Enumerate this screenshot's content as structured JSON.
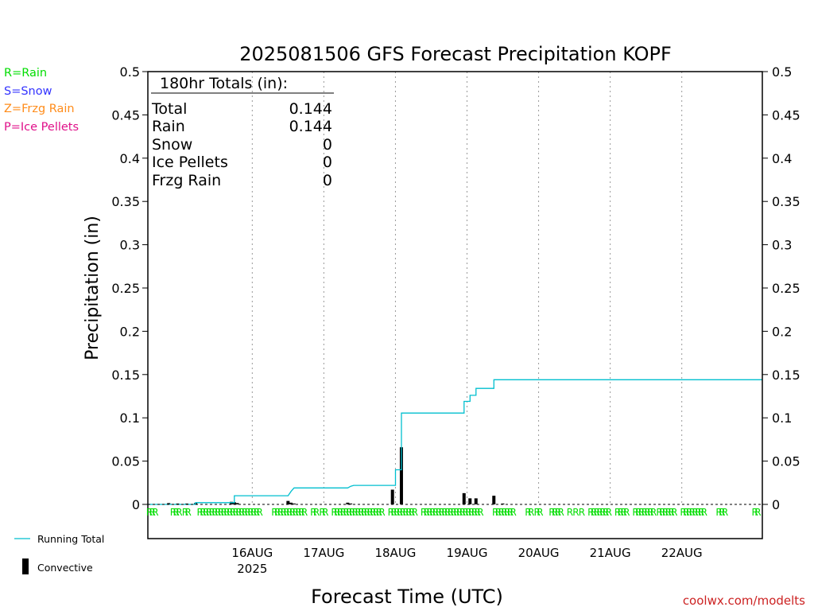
{
  "chart_data": {
    "type": "bar",
    "title": "2025081506 GFS Forecast Precipitation KOPF",
    "xlabel": "Forecast Time (UTC)",
    "ylabel": "Precipitation (in)",
    "ylim": [
      0,
      0.5
    ],
    "y_ticks": [
      "0",
      "0.05",
      "0.1",
      "0.15",
      "0.2",
      "0.25",
      "0.3",
      "0.35",
      "0.4",
      "0.45",
      "0.5"
    ],
    "xlim_hours": [
      -17,
      189
    ],
    "x_ticks": [
      {
        "label": "16AUG",
        "sublabel": "2025",
        "hour": 18
      },
      {
        "label": "17AUG",
        "sublabel": "",
        "hour": 42
      },
      {
        "label": "18AUG",
        "sublabel": "",
        "hour": 66
      },
      {
        "label": "19AUG",
        "sublabel": "",
        "hour": 90
      },
      {
        "label": "20AUG",
        "sublabel": "",
        "hour": 114
      },
      {
        "label": "21AUG",
        "sublabel": "",
        "hour": 138
      },
      {
        "label": "22AUG",
        "sublabel": "",
        "hour": 162
      }
    ],
    "grid": "vertical-dotted",
    "series": [
      {
        "name": "Running Total",
        "color": "#00bfcf",
        "step_points": [
          [
            -17,
            0
          ],
          [
            -1,
            0
          ],
          [
            -1,
            0.002
          ],
          [
            12,
            0.002
          ],
          [
            12,
            0.01
          ],
          [
            30,
            0.01
          ],
          [
            31,
            0.015
          ],
          [
            32,
            0.019
          ],
          [
            50,
            0.019
          ],
          [
            51,
            0.021
          ],
          [
            52,
            0.022
          ],
          [
            66,
            0.022
          ],
          [
            66,
            0.04
          ],
          [
            68,
            0.04
          ],
          [
            68,
            0.1055
          ],
          [
            89,
            0.1055
          ],
          [
            89,
            0.119
          ],
          [
            91,
            0.119
          ],
          [
            91,
            0.126
          ],
          [
            93,
            0.126
          ],
          [
            93,
            0.134
          ],
          [
            99,
            0.134
          ],
          [
            99,
            0.144
          ],
          [
            189,
            0.144
          ]
        ]
      },
      {
        "name": "Convective",
        "color": "#000000",
        "bars": [
          [
            -10,
            0.0015
          ],
          [
            -7,
            0.001
          ],
          [
            -4,
            0.001
          ],
          [
            -1,
            0.0015
          ],
          [
            11,
            0.003
          ],
          [
            12,
            0.0025
          ],
          [
            13,
            0.0015
          ],
          [
            30,
            0.004
          ],
          [
            31,
            0.002
          ],
          [
            32,
            0.001
          ],
          [
            50,
            0.002
          ],
          [
            51,
            0.001
          ],
          [
            65,
            0.017
          ],
          [
            68,
            0.066
          ],
          [
            89,
            0.013
          ],
          [
            91,
            0.007
          ],
          [
            93,
            0.007
          ],
          [
            99,
            0.01
          ],
          [
            102,
            0.001
          ]
        ]
      }
    ],
    "ptype_row": {
      "color": "#00dd00",
      "letter": "R",
      "hours": [
        -16.5,
        -15.5,
        -14.5,
        -8.5,
        -7.5,
        -6.5,
        -4.5,
        -3.5,
        0.5,
        1.5,
        2.5,
        3.5,
        4.5,
        5.5,
        6.5,
        7.5,
        8.5,
        9.5,
        10.5,
        11.5,
        12.5,
        13.5,
        14.5,
        15.5,
        16.5,
        17.5,
        18.5,
        19.5,
        20.5,
        25.5,
        26.5,
        27.5,
        28.5,
        29.5,
        30.5,
        31.5,
        32.5,
        33.5,
        34.5,
        35.5,
        38.5,
        39.5,
        41.5,
        42.5,
        45.5,
        46.5,
        47.5,
        48.5,
        49.5,
        50.5,
        51.5,
        52.5,
        53.5,
        54.5,
        55.5,
        56.5,
        57.5,
        58.5,
        59.5,
        60.5,
        61.5,
        64.5,
        65.5,
        66.5,
        67.5,
        68.5,
        69.5,
        70.5,
        71.5,
        72.5,
        75.5,
        76.5,
        77.5,
        78.5,
        79.5,
        80.5,
        81.5,
        82.5,
        83.5,
        84.5,
        85.5,
        86.5,
        87.5,
        88.5,
        89.5,
        90.5,
        91.5,
        92.5,
        93.5,
        94.5,
        99.5,
        100.5,
        101.5,
        102.5,
        103.5,
        104.5,
        105.5,
        110.5,
        111.5,
        113.5,
        114.5,
        118.5,
        119.5,
        120.5,
        121.5,
        124.5,
        126.5,
        128.5,
        131.5,
        132.5,
        133.5,
        134.5,
        135.5,
        136.5,
        137.5,
        140.5,
        141.5,
        142.5,
        143.5,
        146.5,
        147.5,
        148.5,
        149.5,
        150.5,
        151.5,
        152.5,
        154.5,
        155.5,
        156.5,
        157.5,
        158.5,
        159.5,
        162.5,
        163.5,
        164.5,
        165.5,
        166.5,
        167.5,
        168.5,
        169.5,
        174.5,
        175.5,
        176.5,
        186.5,
        187.5
      ]
    }
  },
  "totals_box": {
    "header": "180hr Totals (in):",
    "rows": [
      {
        "label": "Total",
        "value": "0.144"
      },
      {
        "label": "Rain",
        "value": "0.144"
      },
      {
        "label": "Snow",
        "value": "0"
      },
      {
        "label": "Ice Pellets",
        "value": "0"
      },
      {
        "label": "Frzg Rain",
        "value": "0"
      }
    ]
  },
  "ptype_legend": [
    {
      "text": "R=Rain",
      "color": "#00dd00"
    },
    {
      "text": "S=Snow",
      "color": "#3333ff"
    },
    {
      "text": "Z=Frzg Rain",
      "color": "#ff8c1a"
    },
    {
      "text": "P=Ice Pellets",
      "color": "#e0118a"
    }
  ],
  "series_legend": {
    "running_total": "Running Total",
    "convective": "Convective"
  },
  "credit": {
    "text": "coolwx.com/modelts",
    "color": "#cc2222"
  }
}
